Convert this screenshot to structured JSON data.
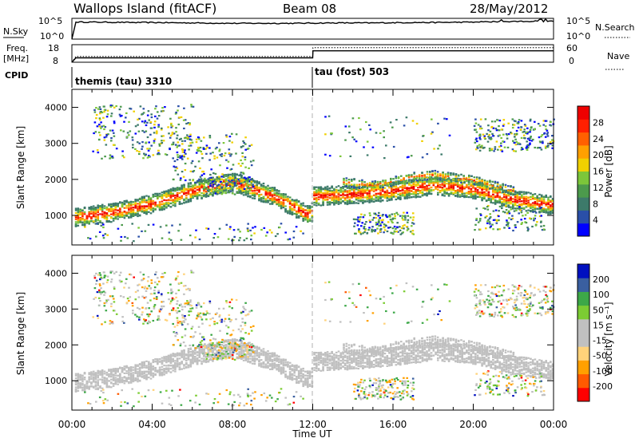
{
  "header": {
    "title": "Wallops Island (fitACF)",
    "beam": "Beam 08",
    "date": "28/May/2012"
  },
  "noise_panel": {
    "left_label": "N.Sky",
    "right_label": "N.Search",
    "left_ticks": [
      "10^5",
      "10^0"
    ],
    "right_ticks": [
      "10^5",
      "10^0"
    ]
  },
  "freq_panel": {
    "freq_label": "Freq.",
    "unit_label": "[MHz]",
    "cpid_label": "CPID",
    "left_ticks": [
      "18",
      "8"
    ],
    "right_ticks": [
      "60",
      "0"
    ],
    "nave_label": "Nave",
    "cpid_segments": [
      "themis (tau) 3310",
      "tau (fost) 503"
    ]
  },
  "x_axis": {
    "label": "Time UT",
    "ticks": [
      "00:00",
      "04:00",
      "08:00",
      "12:00",
      "16:00",
      "20:00",
      "00:00"
    ]
  },
  "colors": {
    "power_scale": [
      "#0000ff",
      "#2a4fa8",
      "#3d7a6a",
      "#4c9a4c",
      "#7cc63a",
      "#f0d000",
      "#ffa000",
      "#ff6000",
      "#ff2000",
      "#ee0000"
    ],
    "velocity_scale": [
      "#ff0000",
      "#ff5a00",
      "#ffa000",
      "#ffd27a",
      "#c0c0c0",
      "#c0c0c0",
      "#7ccc33",
      "#3da848",
      "#3a5fa0",
      "#0010c0"
    ],
    "ground_scatter": "#c0c0c0"
  },
  "chart_data": [
    {
      "type": "line",
      "title": "N.Sky / N.Search",
      "x_hours": [
        0,
        0.2,
        1,
        2,
        3,
        4,
        5,
        6,
        7,
        8,
        9,
        10,
        11,
        12,
        13,
        14,
        15,
        16,
        17,
        18,
        19,
        20,
        21,
        22,
        23,
        24
      ],
      "series": [
        {
          "name": "N.Sky",
          "values_log10": [
            0.0,
            4.1,
            4.1,
            4.05,
            4.0,
            4.0,
            3.95,
            3.9,
            3.85,
            3.8,
            3.8,
            3.8,
            3.8,
            3.85,
            3.9,
            3.9,
            3.9,
            3.95,
            4.0,
            4.0,
            4.05,
            4.1,
            4.2,
            4.25,
            4.3,
            4.3
          ]
        }
      ],
      "ylim_log10": [
        0,
        5
      ]
    },
    {
      "type": "line",
      "title": "Freq. / Nave",
      "x_hours": [
        0,
        0.2,
        12,
        12.01,
        24
      ],
      "series": [
        {
          "name": "Freq.",
          "values": [
            8,
            10.5,
            10.5,
            14.5,
            14.5
          ]
        },
        {
          "name": "Nave",
          "values": [
            0,
            20,
            20,
            50,
            50
          ]
        }
      ],
      "ylim": [
        8,
        18
      ]
    },
    {
      "type": "heatmap",
      "title": "Power",
      "xlabel": "Time UT",
      "ylabel": "Slant Range [km]",
      "xlim_hours": [
        0,
        24
      ],
      "ylim": [
        180,
        4500
      ],
      "yticks": [
        1000,
        2000,
        3000,
        4000
      ],
      "colorbar_label": "Power [dB]",
      "colorbar_ticks": [
        "4",
        "8",
        "12",
        "16",
        "20",
        "24",
        "28"
      ],
      "range_max": 30,
      "main_band_center_km": {
        "x_hours": [
          0,
          2,
          4,
          6,
          8,
          10,
          11.9,
          12,
          14,
          16,
          18,
          20,
          22,
          24
        ],
        "km": [
          950,
          1100,
          1350,
          1700,
          1950,
          1550,
          1000,
          1550,
          1600,
          1700,
          1850,
          1750,
          1450,
          1300
        ]
      },
      "upper_band_center_km": {
        "x_hours": [
          13.5,
          15,
          17,
          18,
          20,
          22
        ],
        "km": [
          1950,
          1850,
          2100,
          2150,
          2000,
          1700
        ]
      }
    },
    {
      "type": "heatmap",
      "title": "Velocity",
      "xlabel": "Time UT",
      "ylabel": "Slant Range [km]",
      "xlim_hours": [
        0,
        24
      ],
      "ylim": [
        180,
        4500
      ],
      "yticks": [
        1000,
        2000,
        3000,
        4000
      ],
      "colorbar_label": "Velocity [m s⁻¹]",
      "colorbar_ticks": [
        "-200",
        "-100",
        "-50",
        "-15",
        "15",
        "50",
        "100",
        "200"
      ],
      "range_max": 250
    }
  ]
}
